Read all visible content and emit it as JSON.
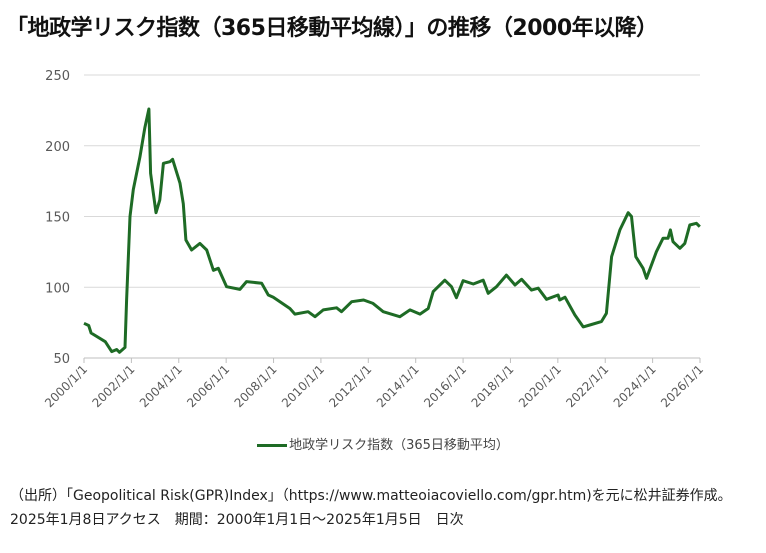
{
  "title": "「地政学リスク指数（365日移動平均線）」の推移（2000年以降）",
  "source_note": "（出所）「Geopolitical Risk(GPR)Index」（https://www.matteoiacoviello.com/gpr.htm)を元に松井証券作成。2025年1月8日アクセス　期間：2000年1月1日～2025年1月5日　日次",
  "chart_data": {
    "type": "line",
    "title": "「地政学リスク指数（365日移動平均線）」の推移（2000年以降）",
    "xlabel": "",
    "ylabel": "",
    "ylim": [
      50,
      250
    ],
    "yticks": [
      50,
      100,
      150,
      200,
      250
    ],
    "xlim": [
      "2000/1/1",
      "2026/1/1"
    ],
    "xtick_labels": [
      "2000/1/1",
      "2002/1/1",
      "2004/1/1",
      "2006/1/1",
      "2008/1/1",
      "2010/1/1",
      "2012/1/1",
      "2014/1/1",
      "2016/1/1",
      "2018/1/1",
      "2020/1/1",
      "2022/1/1",
      "2024/1/1",
      "2026/1/1"
    ],
    "grid": "horizontal",
    "legend_position": "bottom",
    "colors": {
      "series": "#1e6b25",
      "grid": "#d9d9d9"
    },
    "series": [
      {
        "name": "地政学リスク指数（365日移動平均）",
        "x": [
          2000.0,
          2000.2,
          2000.3,
          2000.9,
          2001.17,
          2001.38,
          2001.5,
          2001.73,
          2001.8,
          2001.94,
          2002.08,
          2002.36,
          2002.57,
          2002.74,
          2002.81,
          2003.04,
          2003.2,
          2003.35,
          2003.63,
          2003.74,
          2004.05,
          2004.19,
          2004.3,
          2004.54,
          2004.89,
          2005.18,
          2005.46,
          2005.67,
          2006.02,
          2006.58,
          2006.86,
          2007.5,
          2007.78,
          2007.99,
          2008.69,
          2008.9,
          2009.46,
          2009.75,
          2010.1,
          2010.66,
          2010.87,
          2011.3,
          2011.8,
          2012.2,
          2012.63,
          2013.33,
          2013.76,
          2014.18,
          2014.53,
          2014.74,
          2015.23,
          2015.51,
          2015.72,
          2016.0,
          2016.43,
          2016.85,
          2017.06,
          2017.41,
          2017.83,
          2018.19,
          2018.47,
          2018.89,
          2019.17,
          2019.52,
          2020.01,
          2020.08,
          2020.3,
          2020.72,
          2021.07,
          2021.35,
          2021.84,
          2022.05,
          2022.27,
          2022.62,
          2022.97,
          2023.11,
          2023.29,
          2023.6,
          2023.74,
          2024.16,
          2024.44,
          2024.65,
          2024.75,
          2024.86,
          2025.15,
          2025.36,
          2025.57,
          2025.85,
          2025.99
        ],
        "values": [
          74.5,
          73,
          67.7,
          61.5,
          54.5,
          56,
          54,
          57.5,
          91,
          150,
          169,
          192,
          213,
          226,
          180.5,
          152.7,
          161.7,
          187.6,
          188.7,
          190.4,
          173.5,
          159,
          133.4,
          126.3,
          131,
          126.3,
          112,
          113.4,
          100.4,
          98.5,
          104,
          102.8,
          94.5,
          93,
          85,
          81,
          82.7,
          79.2,
          84,
          85.5,
          82.7,
          89.8,
          91,
          88.6,
          82.7,
          79.2,
          84,
          81,
          85,
          96.9,
          105,
          100.4,
          92.6,
          104.6,
          102.3,
          105,
          95.7,
          100.4,
          108.6,
          101.6,
          105.6,
          98,
          99.3,
          91.5,
          94.5,
          91,
          93,
          80.4,
          72,
          73.3,
          75.7,
          81.6,
          121.6,
          140.5,
          152.7,
          150,
          121.6,
          113.4,
          106.3,
          125.1,
          134.6,
          134.6,
          140.5,
          132.2,
          127.5,
          131,
          144,
          145.2,
          142.8
        ]
      }
    ]
  }
}
